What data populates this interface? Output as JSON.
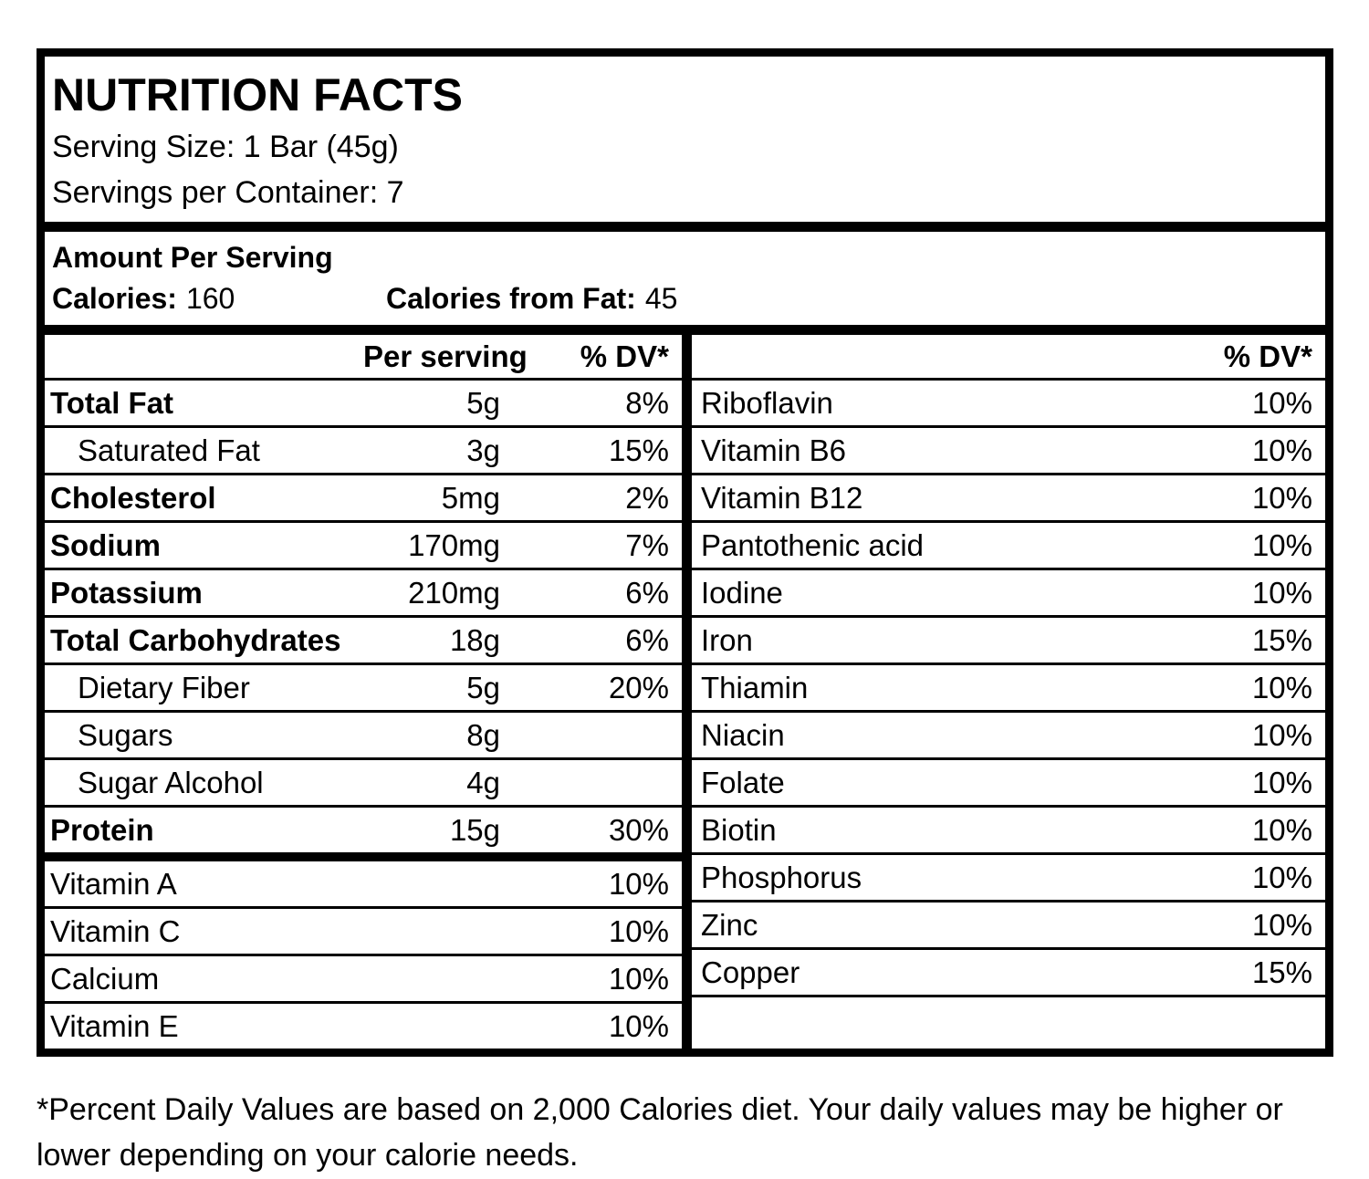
{
  "header": {
    "title": "NUTRITION FACTS",
    "serving_size": "Serving Size: 1 Bar (45g)",
    "servings_per_container": "Servings per Container: 7"
  },
  "amount_per_serving": {
    "heading": "Amount Per Serving",
    "calories_label": "Calories:",
    "calories_value": "160",
    "calories_from_fat_label": "Calories from Fat:",
    "calories_from_fat_value": "45"
  },
  "left_table": {
    "header": {
      "per_serving": "Per serving",
      "dv": "% DV*"
    },
    "rows": [
      {
        "label": "Total Fat",
        "amount": "5g",
        "dv": "8%",
        "bold": true
      },
      {
        "label": "Saturated Fat",
        "amount": "3g",
        "dv": "15%",
        "indent": true
      },
      {
        "label": "Cholesterol",
        "amount": "5mg",
        "dv": "2%",
        "bold": true
      },
      {
        "label": "Sodium",
        "amount": "170mg",
        "dv": "7%",
        "bold": true
      },
      {
        "label": "Potassium",
        "amount": "210mg",
        "dv": "6%",
        "bold": true
      },
      {
        "label": "Total Carbohydrates",
        "amount": "18g",
        "dv": "6%",
        "bold": true
      },
      {
        "label": "Dietary Fiber",
        "amount": "5g",
        "dv": "20%",
        "indent": true
      },
      {
        "label": "Sugars",
        "amount": "8g",
        "dv": "",
        "indent": true
      },
      {
        "label": "Sugar Alcohol",
        "amount": "4g",
        "dv": "",
        "indent": true
      },
      {
        "label": "Protein",
        "amount": "15g",
        "dv": "30%",
        "bold": true
      },
      {
        "label": "Vitamin A",
        "amount": "",
        "dv": "10%",
        "thick_top": true
      },
      {
        "label": "Vitamin C",
        "amount": "",
        "dv": "10%"
      },
      {
        "label": "Calcium",
        "amount": "",
        "dv": "10%"
      },
      {
        "label": "Vitamin E",
        "amount": "",
        "dv": "10%"
      }
    ]
  },
  "right_table": {
    "header": {
      "dv": "% DV*"
    },
    "rows": [
      {
        "label": "Riboflavin",
        "dv": "10%"
      },
      {
        "label": "Vitamin B6",
        "dv": "10%"
      },
      {
        "label": "Vitamin B12",
        "dv": "10%"
      },
      {
        "label": "Pantothenic acid",
        "dv": "10%"
      },
      {
        "label": "Iodine",
        "dv": "10%"
      },
      {
        "label": "Iron",
        "dv": "15%"
      },
      {
        "label": "Thiamin",
        "dv": "10%"
      },
      {
        "label": "Niacin",
        "dv": "10%"
      },
      {
        "label": "Folate",
        "dv": "10%"
      },
      {
        "label": "Biotin",
        "dv": "10%"
      },
      {
        "label": "Phosphorus",
        "dv": "10%"
      },
      {
        "label": "Zinc",
        "dv": "10%"
      },
      {
        "label": "Copper",
        "dv": "15%"
      },
      {
        "label": "",
        "dv": ""
      }
    ]
  },
  "footnote": "*Percent Daily Values are based on 2,000 Calories diet. Your daily values may be higher or lower depending on your calorie needs.",
  "colors": {
    "text": "#000000",
    "border": "#000000",
    "background": "#ffffff"
  }
}
